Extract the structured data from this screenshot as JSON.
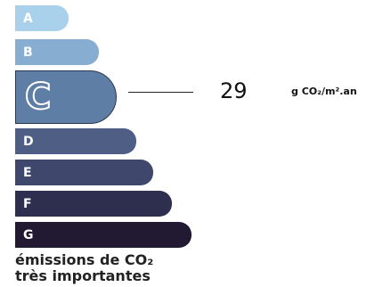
{
  "scale": {
    "classes": [
      {
        "letter": "A",
        "color": "#a9d1ec"
      },
      {
        "letter": "B",
        "color": "#87aed1"
      },
      {
        "letter": "C",
        "color": "#5f7ea5"
      },
      {
        "letter": "D",
        "color": "#4f5e85"
      },
      {
        "letter": "E",
        "color": "#3f486c"
      },
      {
        "letter": "F",
        "color": "#2e2f4e"
      },
      {
        "letter": "G",
        "color": "#221a33"
      }
    ],
    "active_class": "C"
  },
  "reading": {
    "value": "29",
    "unit": "g CO₂/m².an"
  },
  "caption": {
    "line1": "émissions de CO₂",
    "line2": "très importantes"
  }
}
